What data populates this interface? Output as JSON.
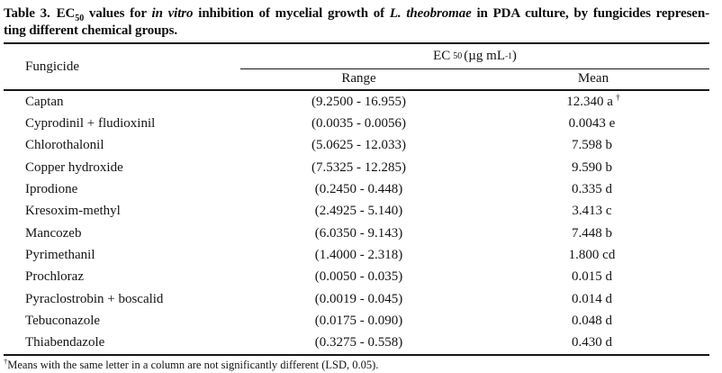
{
  "title": {
    "label": "Table 3.",
    "ec": "EC",
    "ec_sub": "50",
    "after_ec": " values for ",
    "italic1": "in vitro",
    "mid": " inhibition of mycelial growth of ",
    "italic2": "L. theobromae",
    "tail": " in PDA culture, by fungicides represen-",
    "line2": "ting different chemical groups."
  },
  "table": {
    "col_fungicide": "Fungicide",
    "spanner": {
      "ec": "EC",
      "ec_sub": "50",
      "units_open": "(µg mL",
      "units_sup": "-1",
      "units_close": ")"
    },
    "col_range": "Range",
    "col_mean": "Mean",
    "rows": [
      {
        "name": "Captan",
        "range": "(9.2500 - 16.955)",
        "mean": "12.340 a",
        "mean_sup": "†"
      },
      {
        "name": "Cyprodinil + fludioxinil",
        "range": "(0.0035 - 0.0056)",
        "mean": "0.0043 e",
        "mean_sup": ""
      },
      {
        "name": "Chlorothalonil",
        "range": "(5.0625 - 12.033)",
        "mean": "7.598 b",
        "mean_sup": ""
      },
      {
        "name": "Copper hydroxide",
        "range": "(7.5325 - 12.285)",
        "mean": "9.590 b",
        "mean_sup": ""
      },
      {
        "name": "Iprodione",
        "range": "(0.2450 - 0.448)",
        "mean": "0.335 d",
        "mean_sup": ""
      },
      {
        "name": "Kresoxim-methyl",
        "range": "(2.4925 - 5.140)",
        "mean": "3.413 c",
        "mean_sup": ""
      },
      {
        "name": "Mancozeb",
        "range": "(6.0350 - 9.143)",
        "mean": "7.448 b",
        "mean_sup": ""
      },
      {
        "name": "Pyrimethanil",
        "range": "(1.4000 - 2.318)",
        "mean": "1.800 cd",
        "mean_sup": ""
      },
      {
        "name": "Prochloraz",
        "range": "(0.0050 - 0.035)",
        "mean": "0.015 d",
        "mean_sup": ""
      },
      {
        "name": "Pyraclostrobin + boscalid",
        "range": "(0.0019 - 0.045)",
        "mean": "0.014 d",
        "mean_sup": ""
      },
      {
        "name": "Tebuconazole",
        "range": "(0.0175 - 0.090)",
        "mean": "0.048 d",
        "mean_sup": ""
      },
      {
        "name": "Thiabendazole",
        "range": "(0.3275 - 0.558)",
        "mean": "0.430 d",
        "mean_sup": ""
      }
    ]
  },
  "footnote": {
    "sup": "†",
    "text": "Means with the same letter in a column are not significantly different (LSD, 0.05)."
  }
}
